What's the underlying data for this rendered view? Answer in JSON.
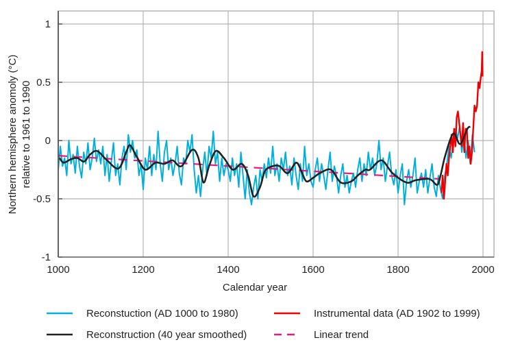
{
  "chart_data": {
    "type": "line",
    "xlabel": "Calendar year",
    "ylabel_line1": "Northern hemisphere anomoly (°C)",
    "ylabel_line2": "relative to 1961 to 1990",
    "xlim": [
      1000,
      2030
    ],
    "ylim": [
      -1,
      1.1
    ],
    "xticks": [
      1000,
      1200,
      1400,
      1600,
      1800,
      2000
    ],
    "yticks": [
      1,
      0.5,
      0,
      -0.5,
      -1
    ],
    "ytick_labels": [
      "1",
      "0.5",
      "0",
      "-0.5",
      "-1"
    ],
    "xtick_labels": [
      "1000",
      "1200",
      "1400",
      "1600",
      "1800",
      "2000"
    ],
    "grid": true,
    "legend": [
      {
        "label": "Reconstuction (AD 1000 to 1980)",
        "color": "#00b0dc",
        "style": "solid"
      },
      {
        "label": "Instrumental data (AD 1902 to 1999)",
        "color": "#ee0000",
        "style": "solid"
      },
      {
        "label": "Reconstruction (40 year smoothed)",
        "color": "#222222",
        "style": "solid"
      },
      {
        "label": "Linear trend",
        "color": "#e8197f",
        "style": "dashed"
      }
    ],
    "legend_placement": "bottom",
    "series": [
      {
        "name": "Reconstuction (AD 1000 to 1980)",
        "color": "#00b0dc",
        "x_start": 1000,
        "x_step": 5,
        "y": [
          -0.25,
          -0.05,
          -0.22,
          -0.15,
          -0.3,
          0.0,
          -0.2,
          -0.12,
          -0.28,
          -0.05,
          -0.22,
          -0.32,
          -0.1,
          -0.2,
          -0.02,
          -0.25,
          -0.15,
          0.02,
          -0.18,
          -0.08,
          -0.2,
          -0.05,
          -0.3,
          -0.12,
          -0.35,
          -0.18,
          -0.02,
          -0.3,
          -0.2,
          -0.38,
          -0.15,
          -0.05,
          -0.25,
          0.05,
          -0.1,
          0.0,
          -0.15,
          -0.08,
          -0.3,
          -0.2,
          -0.42,
          -0.15,
          -0.25,
          -0.05,
          -0.3,
          -0.12,
          -0.25,
          0.08,
          -0.2,
          -0.35,
          -0.1,
          0.0,
          -0.25,
          -0.15,
          -0.3,
          -0.2,
          -0.05,
          -0.28,
          -0.38,
          -0.15,
          -0.2,
          0.0,
          -0.1,
          0.05,
          -0.25,
          -0.45,
          -0.3,
          -0.48,
          -0.25,
          -0.1,
          -0.3,
          -0.05,
          -0.15,
          0.08,
          -0.2,
          -0.1,
          -0.35,
          -0.15,
          -0.3,
          -0.2,
          -0.25,
          -0.35,
          -0.15,
          -0.3,
          -0.2,
          -0.4,
          -0.1,
          -0.3,
          -0.5,
          -0.25,
          -0.45,
          -0.55,
          -0.4,
          -0.3,
          -0.5,
          -0.25,
          -0.35,
          -0.2,
          -0.32,
          -0.15,
          -0.28,
          -0.05,
          -0.3,
          -0.2,
          -0.35,
          -0.15,
          -0.25,
          -0.1,
          -0.3,
          -0.22,
          -0.38,
          -0.15,
          -0.3,
          -0.42,
          -0.2,
          -0.35,
          -0.05,
          -0.3,
          -0.2,
          -0.35,
          -0.4,
          -0.25,
          -0.15,
          -0.35,
          -0.2,
          -0.3,
          -0.42,
          -0.25,
          -0.1,
          -0.35,
          -0.22,
          -0.3,
          -0.45,
          -0.3,
          -0.2,
          -0.4,
          -0.3,
          -0.45,
          -0.35,
          -0.28,
          -0.4,
          -0.25,
          -0.15,
          -0.35,
          -0.2,
          -0.3,
          -0.1,
          -0.25,
          -0.15,
          -0.3,
          -0.2,
          0.0,
          -0.25,
          -0.15,
          -0.35,
          -0.22,
          -0.1,
          -0.3,
          -0.38,
          -0.25,
          -0.45,
          -0.3,
          -0.2,
          -0.55,
          -0.35,
          -0.25,
          -0.4,
          -0.3,
          -0.15,
          -0.45,
          -0.35,
          -0.28,
          -0.4,
          -0.25,
          -0.45,
          -0.32,
          -0.2,
          -0.4,
          -0.48,
          -0.3,
          -0.42,
          -0.5,
          -0.3,
          -0.2,
          -0.05,
          -0.15,
          0.0,
          0.1,
          0.02,
          0.12,
          -0.1,
          0.05,
          -0.15,
          0.0,
          -0.2,
          0.05,
          -0.1
        ]
      },
      {
        "name": "Instrumental data (AD 1902 to 1999)",
        "color": "#ee0000",
        "x": [
          1902,
          1905,
          1908,
          1911,
          1914,
          1917,
          1920,
          1923,
          1926,
          1929,
          1932,
          1935,
          1938,
          1941,
          1944,
          1947,
          1950,
          1953,
          1956,
          1959,
          1962,
          1965,
          1968,
          1971,
          1974,
          1977,
          1980,
          1983,
          1986,
          1989,
          1992,
          1995,
          1997,
          1998,
          1999
        ],
        "y": [
          -0.45,
          -0.3,
          -0.5,
          -0.35,
          -0.2,
          -0.3,
          -0.15,
          -0.05,
          0.05,
          -0.1,
          0.1,
          -0.05,
          0.2,
          0.25,
          0.15,
          0.05,
          -0.05,
          0.15,
          -0.1,
          0.1,
          0.1,
          -0.15,
          -0.05,
          -0.2,
          -0.1,
          0.1,
          0.3,
          0.25,
          0.3,
          0.5,
          0.45,
          0.55,
          0.6,
          0.76,
          0.55
        ]
      },
      {
        "name": "Reconstruction (40 year smoothed)",
        "color": "#222222",
        "x": [
          1003,
          1013,
          1030,
          1045,
          1061,
          1075,
          1092,
          1115,
          1142,
          1160,
          1169,
          1185,
          1205,
          1229,
          1250,
          1269,
          1290,
          1315,
          1330,
          1342,
          1355,
          1371,
          1390,
          1411,
          1432,
          1447,
          1460,
          1475,
          1487,
          1505,
          1521,
          1540,
          1560,
          1572,
          1584,
          1600,
          1616,
          1642,
          1665,
          1690,
          1705,
          1723,
          1734,
          1761,
          1787,
          1820,
          1842,
          1874,
          1892,
          1900,
          1911,
          1930,
          1946,
          1963,
          1970
        ],
        "y": [
          -0.15,
          -0.19,
          -0.16,
          -0.15,
          -0.18,
          -0.12,
          -0.09,
          -0.17,
          -0.24,
          -0.1,
          -0.04,
          -0.14,
          -0.25,
          -0.19,
          -0.2,
          -0.17,
          -0.22,
          -0.08,
          -0.15,
          -0.36,
          -0.22,
          -0.09,
          -0.15,
          -0.25,
          -0.2,
          -0.3,
          -0.48,
          -0.4,
          -0.26,
          -0.22,
          -0.22,
          -0.28,
          -0.19,
          -0.26,
          -0.35,
          -0.32,
          -0.28,
          -0.25,
          -0.36,
          -0.35,
          -0.3,
          -0.25,
          -0.25,
          -0.17,
          -0.28,
          -0.36,
          -0.34,
          -0.33,
          -0.38,
          -0.3,
          -0.13,
          0.06,
          -0.03,
          0.1,
          0.12
        ]
      },
      {
        "name": "Linear trend",
        "color": "#e8197f",
        "x": [
          1000,
          1900
        ],
        "y": [
          -0.13,
          -0.33
        ]
      }
    ]
  }
}
